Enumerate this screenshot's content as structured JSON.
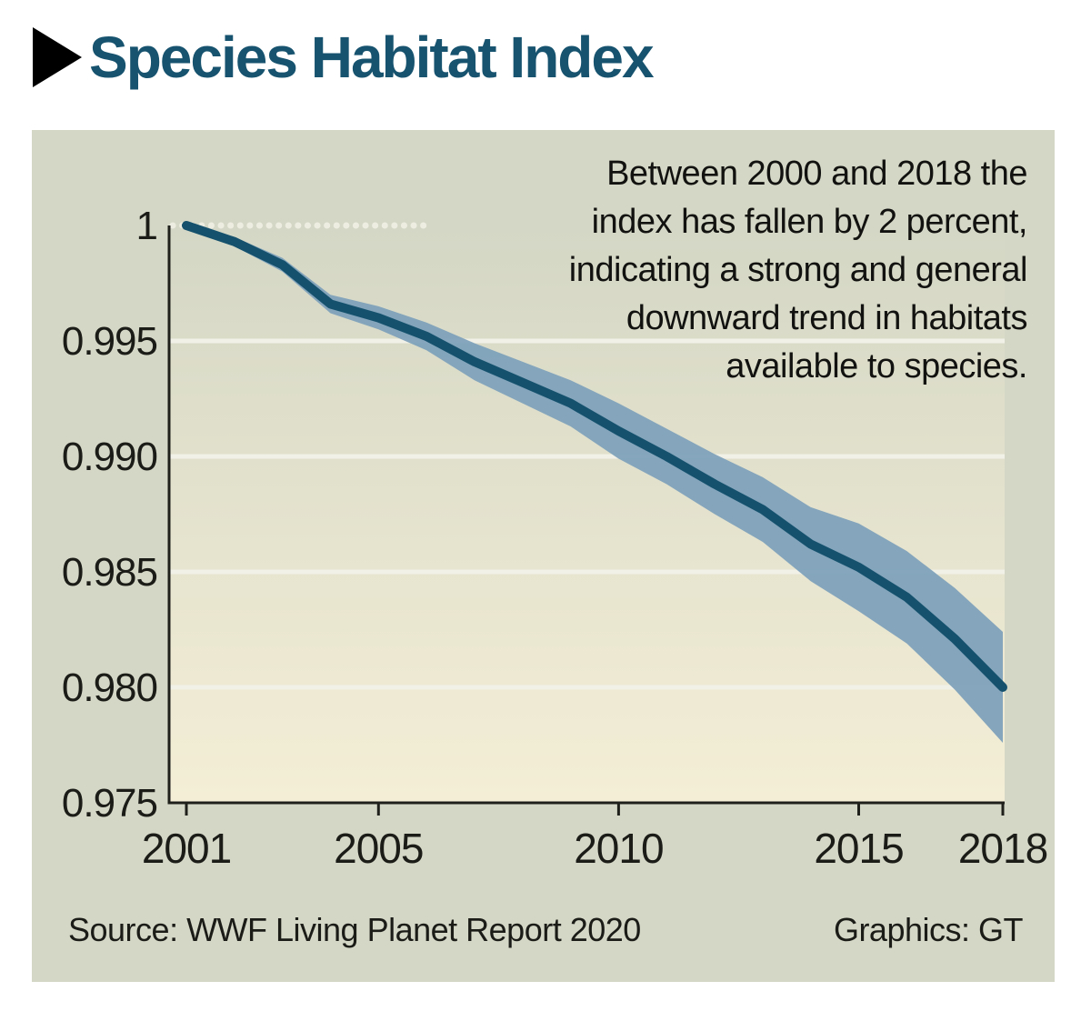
{
  "header": {
    "title": "Species Habitat Index"
  },
  "annotation": {
    "lines": [
      "Between 2000 and 2018 the",
      "index has fallen by 2 percent,",
      "indicating a strong and general",
      "downward trend in habitats",
      "available to species."
    ]
  },
  "footer": {
    "source": "Source: WWF Living Planet Report 2020",
    "credit": "Graphics: GT"
  },
  "chart_data": {
    "type": "line",
    "title": "Species Habitat Index",
    "xlabel": "",
    "ylabel": "",
    "x": [
      2001,
      2002,
      2003,
      2004,
      2005,
      2006,
      2007,
      2008,
      2009,
      2010,
      2011,
      2012,
      2013,
      2014,
      2015,
      2016,
      2017,
      2018
    ],
    "series": [
      {
        "name": "Species Habitat Index",
        "values": [
          1.0,
          0.9993,
          0.9983,
          0.9966,
          0.996,
          0.9952,
          0.9941,
          0.9932,
          0.9923,
          0.9911,
          0.99,
          0.9888,
          0.9877,
          0.9862,
          0.9852,
          0.9839,
          0.9821,
          0.98
        ]
      },
      {
        "name": "confidence band upper",
        "values": [
          1.0001,
          0.9995,
          0.9986,
          0.997,
          0.9965,
          0.9958,
          0.9949,
          0.9941,
          0.9933,
          0.9923,
          0.9912,
          0.9901,
          0.9891,
          0.9878,
          0.9871,
          0.9859,
          0.9843,
          0.9824
        ]
      },
      {
        "name": "confidence band lower",
        "values": [
          0.9999,
          0.9991,
          0.998,
          0.9962,
          0.9955,
          0.9946,
          0.9933,
          0.9923,
          0.9913,
          0.9899,
          0.9888,
          0.9875,
          0.9863,
          0.9846,
          0.9833,
          0.9819,
          0.9799,
          0.9776
        ]
      }
    ],
    "xlim": [
      2001,
      2018
    ],
    "ylim": [
      0.975,
      1.0
    ],
    "x_ticks": [
      2001,
      2005,
      2010,
      2015,
      2018
    ],
    "y_ticks": [
      1,
      0.995,
      0.99,
      0.985,
      0.98,
      0.975
    ],
    "y_tick_labels": [
      "1",
      "0.995",
      "0.990",
      "0.985",
      "0.980",
      "0.975"
    ],
    "grid": true,
    "legend": "none",
    "reference_line": {
      "y": 1,
      "style": "dotted",
      "ends_at_x": 2006.1
    },
    "colors": {
      "line": "#15516d",
      "band": "#7ea1ba",
      "axis": "#1f1f1c",
      "grid": "#f1f1e7",
      "dotted": "#eeede1",
      "tick_text": "#1b1b18",
      "card_bg": "#d4d7c5",
      "plot_bg_top": "#d4d7c5",
      "plot_bg_bottom": "#f4eed6",
      "title": "#17536e"
    }
  }
}
